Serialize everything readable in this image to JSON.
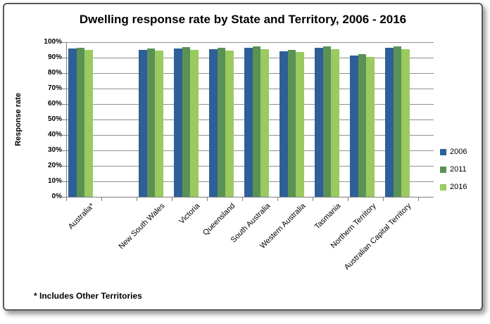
{
  "frame": {
    "background": "#FFFFFF",
    "border_color": "#58595B"
  },
  "chart_data": {
    "type": "bar",
    "title": "Dwelling response rate by State and Territory, 2006 - 2016",
    "xlabel": "",
    "ylabel": "Response rate",
    "footnote": "* Includes Other Territories",
    "categories": [
      "Australia*",
      "New South Wales",
      "Victoria",
      "Queensland",
      "South Australia",
      "Western Australia",
      "Tasmania",
      "Northern Territory",
      "Australian Capital Territory"
    ],
    "series": [
      {
        "name": "2006",
        "color": "#2E5F96",
        "values": [
          95.8,
          95.1,
          95.9,
          95.4,
          96.5,
          94.3,
          96.5,
          91.6,
          96.2
        ]
      },
      {
        "name": "2011",
        "color": "#5A9256",
        "values": [
          96.3,
          96.0,
          96.7,
          96.2,
          97.1,
          95.2,
          97.3,
          92.5,
          97.4
        ]
      },
      {
        "name": "2016",
        "color": "#9ACA60",
        "values": [
          94.8,
          94.4,
          94.9,
          94.4,
          95.6,
          93.7,
          95.3,
          90.6,
          95.7
        ]
      }
    ],
    "y_axis": {
      "min": 0,
      "max": 100,
      "step": 10,
      "unit": "%"
    },
    "ylim": [
      0,
      100
    ],
    "grid": true,
    "legend_position": "right",
    "category_slots": [
      0,
      2,
      3,
      4,
      5,
      6,
      7,
      8,
      9
    ],
    "total_slots": 10,
    "gridline_color": "#909090",
    "axis_color": "#7F7F7F",
    "text_color": "#000000"
  }
}
